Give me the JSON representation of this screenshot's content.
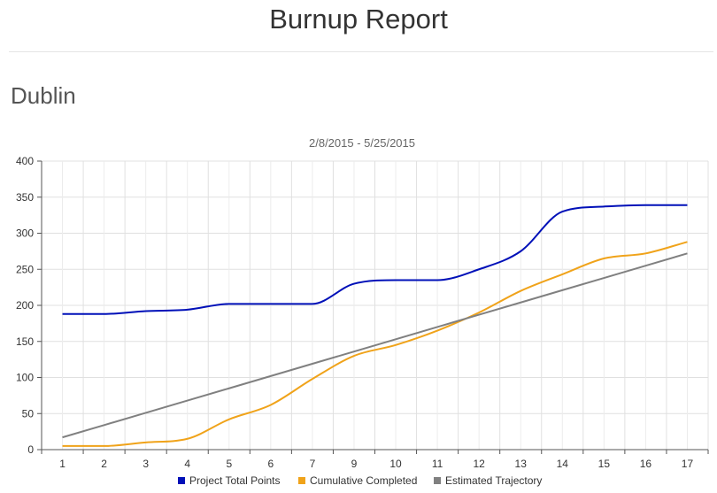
{
  "page": {
    "title": "Burnup Report",
    "section": "Dublin"
  },
  "colors": {
    "project_total": "#0010b8",
    "cumulative_completed": "#f0a31a",
    "estimated_trajectory": "#808080",
    "grid": "#e0e0e0",
    "axis": "#555555"
  },
  "chart_data": {
    "type": "line",
    "title": "2/8/2015 - 5/25/2015",
    "xlabel": "",
    "ylabel": "",
    "categories": [
      "1",
      "2",
      "3",
      "4",
      "5",
      "6",
      "7",
      "9",
      "10",
      "11",
      "12",
      "13",
      "14",
      "15",
      "16",
      "17"
    ],
    "ylim": [
      0,
      400
    ],
    "yticks": [
      0,
      50,
      100,
      150,
      200,
      250,
      300,
      350,
      400
    ],
    "grid": true,
    "legend_position": "bottom",
    "series": [
      {
        "name": "Project Total Points",
        "color": "#0010b8",
        "values": [
          188,
          188,
          192,
          194,
          202,
          202,
          202,
          230,
          235,
          235,
          250,
          275,
          330,
          337,
          339,
          339
        ]
      },
      {
        "name": "Cumulative Completed",
        "color": "#f0a31a",
        "values": [
          5,
          5,
          10,
          15,
          42,
          62,
          98,
          130,
          145,
          165,
          190,
          220,
          243,
          265,
          272,
          288
        ]
      },
      {
        "name": "Estimated Trajectory",
        "color": "#808080",
        "values": [
          17,
          34,
          51,
          68,
          85,
          102,
          119,
          136,
          153,
          170,
          187,
          204,
          221,
          238,
          255,
          272
        ]
      }
    ]
  }
}
